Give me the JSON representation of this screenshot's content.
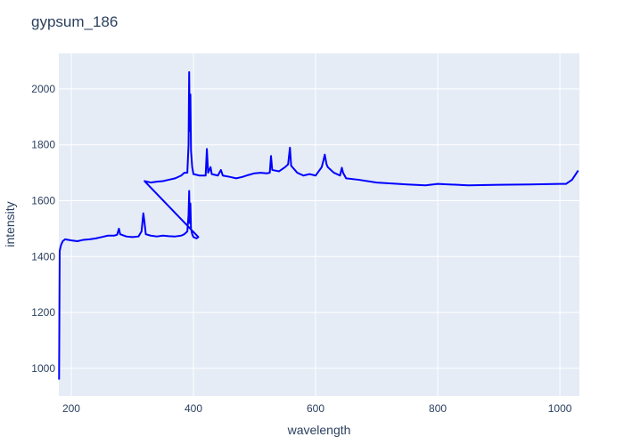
{
  "chart_data": {
    "type": "line",
    "title": "gypsum_186",
    "x_label": "wavelength",
    "y_label": "intensity",
    "color": "#0000ff",
    "grid": true,
    "x": [
      180,
      181,
      183,
      186,
      190,
      200,
      210,
      220,
      230,
      240,
      250,
      260,
      270,
      275,
      278,
      280,
      290,
      300,
      310,
      315,
      318,
      320,
      322,
      330,
      340,
      350,
      360,
      370,
      380,
      385,
      390,
      392,
      393,
      394,
      395,
      396,
      398,
      400,
      405,
      408,
      320,
      330,
      340,
      350,
      360,
      370,
      380,
      385,
      390,
      392,
      393,
      394,
      395,
      396,
      398,
      400,
      410,
      420,
      422,
      424,
      428,
      430,
      440,
      445,
      448,
      460,
      470,
      480,
      490,
      500,
      510,
      520,
      525,
      527,
      529,
      540,
      550,
      555,
      558,
      560,
      570,
      580,
      590,
      600,
      610,
      613,
      615,
      618,
      620,
      630,
      640,
      643,
      645,
      650,
      670,
      700,
      750,
      780,
      800,
      850,
      900,
      950,
      1000,
      1010,
      1020,
      1030
    ],
    "values": [
      960,
      1420,
      1440,
      1455,
      1462,
      1458,
      1455,
      1460,
      1462,
      1465,
      1470,
      1475,
      1475,
      1478,
      1500,
      1480,
      1472,
      1470,
      1472,
      1490,
      1555,
      1520,
      1480,
      1475,
      1472,
      1475,
      1473,
      1472,
      1475,
      1480,
      1490,
      1550,
      1635,
      1520,
      1590,
      1500,
      1480,
      1470,
      1465,
      1470,
      1670,
      1665,
      1668,
      1670,
      1675,
      1680,
      1690,
      1700,
      1700,
      1800,
      2060,
      1850,
      1980,
      1780,
      1720,
      1695,
      1690,
      1690,
      1785,
      1700,
      1720,
      1695,
      1690,
      1710,
      1690,
      1685,
      1680,
      1685,
      1692,
      1698,
      1700,
      1698,
      1700,
      1760,
      1710,
      1705,
      1720,
      1730,
      1790,
      1725,
      1700,
      1690,
      1695,
      1690,
      1720,
      1745,
      1765,
      1730,
      1720,
      1700,
      1690,
      1718,
      1700,
      1680,
      1675,
      1665,
      1658,
      1655,
      1660,
      1655,
      1657,
      1658,
      1660,
      1660,
      1675,
      1708
    ],
    "xlim": [
      179.6,
      1032
    ],
    "ylim": [
      901,
      2127
    ],
    "xticks": [
      200,
      400,
      600,
      800,
      1000
    ],
    "yticks": [
      1000,
      1200,
      1400,
      1600,
      1800,
      2000
    ]
  }
}
